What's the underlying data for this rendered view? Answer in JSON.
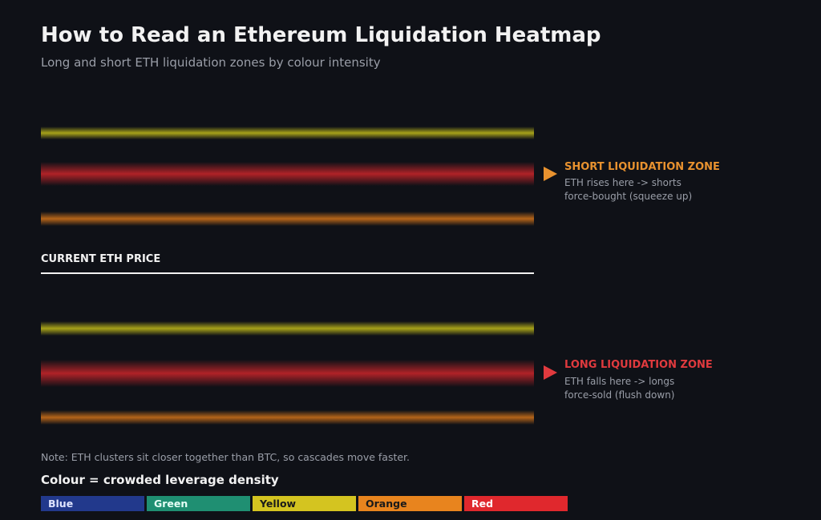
{
  "title": "How to Read an Ethereum Liquidation Heatmap",
  "subtitle": "Long and short ETH liquidation zones by colour intensity",
  "current_price": {
    "label": "CURRENT ETH PRICE"
  },
  "short_zone": {
    "title": "SHORT LIQUIDATION ZONE",
    "desc_line1": "ETH rises here -> shorts",
    "desc_line2": "force-bought (squeeze up)",
    "color": "#e8922f"
  },
  "long_zone": {
    "title": "LONG LIQUIDATION ZONE",
    "desc_line1": "ETH falls here -> longs",
    "desc_line2": "force-sold (flush down)",
    "color": "#e03a3e"
  },
  "bands": {
    "above": [
      "yellow",
      "red",
      "orange"
    ],
    "below": [
      "yellow",
      "red",
      "orange"
    ]
  },
  "note": "Note: ETH clusters sit closer together than BTC, so cascades move faster.",
  "legend": {
    "title": "Colour = crowded leverage density",
    "items": [
      {
        "label": "Blue",
        "color": "#22398c",
        "text_color": "#dfe4ff"
      },
      {
        "label": "Green",
        "color": "#1f8f72",
        "text_color": "#e6fff6"
      },
      {
        "label": "Yellow",
        "color": "#d4c420",
        "text_color": "#1a1a1a"
      },
      {
        "label": "Orange",
        "color": "#e8841e",
        "text_color": "#1a1a1a"
      },
      {
        "label": "Red",
        "color": "#e0282d",
        "text_color": "#ffffff"
      }
    ]
  }
}
